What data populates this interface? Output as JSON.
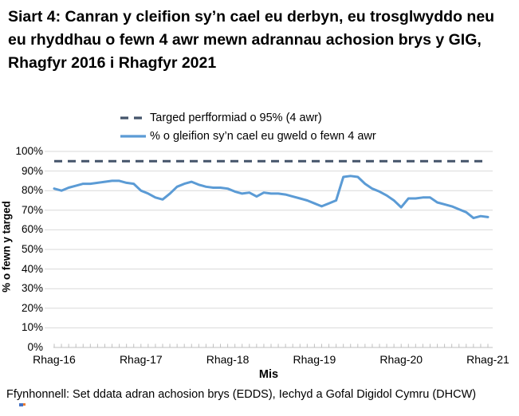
{
  "title": "Siart 4: Canran y cleifion sy’n cael eu derbyn, eu trosglwyddo neu eu rhyddhau o fewn 4 awr mewn adrannau achosion brys y GIG, Rhagfyr 2016 i Rhagfyr 2021",
  "footer": "Ffynhonnell: Set ddata adran achosion brys (EDDS), Iechyd a Gofal Digidol Cymru (DHCW)",
  "legend": {
    "target_label": "Targed perfformiad o 95% (4 awr)",
    "series_label": "% o gleifion sy’n cael eu gweld o fewn 4 awr"
  },
  "colors": {
    "series_line": "#5B9BD5",
    "target_line": "#44546A",
    "gridline": "#D9D9D9",
    "axis": "#BFBFBF"
  },
  "chart_data": {
    "type": "line",
    "title": "",
    "xlabel": "Mis",
    "ylabel": "% o fewn y targed",
    "ylim": [
      0,
      100
    ],
    "grid": true,
    "legend_position": "top",
    "y_tick_labels": [
      "0%",
      "10%",
      "20%",
      "30%",
      "40%",
      "50%",
      "60%",
      "70%",
      "80%",
      "90%",
      "100%"
    ],
    "x_tick_labels": [
      "Rhag-16",
      "Rhag-17",
      "Rhag-18",
      "Rhag-19",
      "Rhag-20",
      "Rhag-21"
    ],
    "months_per_x_tick": 12,
    "series": [
      {
        "name": "Targed perfformiad o 95% (4 awr)",
        "style": "dashed",
        "color": "#44546A",
        "constant_value": 95
      },
      {
        "name": "% o gleifion sy’n cael eu gweld o fewn 4 awr",
        "style": "solid",
        "color": "#5B9BD5",
        "x_start": "Rhag-16",
        "x_end": "Rhag-21",
        "x_interval": "monthly",
        "values": [
          81,
          80,
          81.5,
          82.5,
          83.5,
          83.5,
          84,
          84.5,
          85,
          85,
          84,
          83.5,
          80,
          78.5,
          76.5,
          75.5,
          78.5,
          82,
          83.5,
          84.5,
          83,
          82,
          81.5,
          81.5,
          81,
          79.5,
          78.5,
          79,
          77,
          79,
          78.5,
          78.5,
          78,
          77,
          76,
          75,
          73.5,
          72,
          73.5,
          75,
          87,
          87.5,
          87,
          83.5,
          81,
          79.5,
          77.5,
          75,
          71.5,
          76,
          76,
          76.5,
          76.5,
          74,
          73,
          72,
          70.5,
          69,
          66,
          67,
          66.5
        ]
      }
    ]
  }
}
